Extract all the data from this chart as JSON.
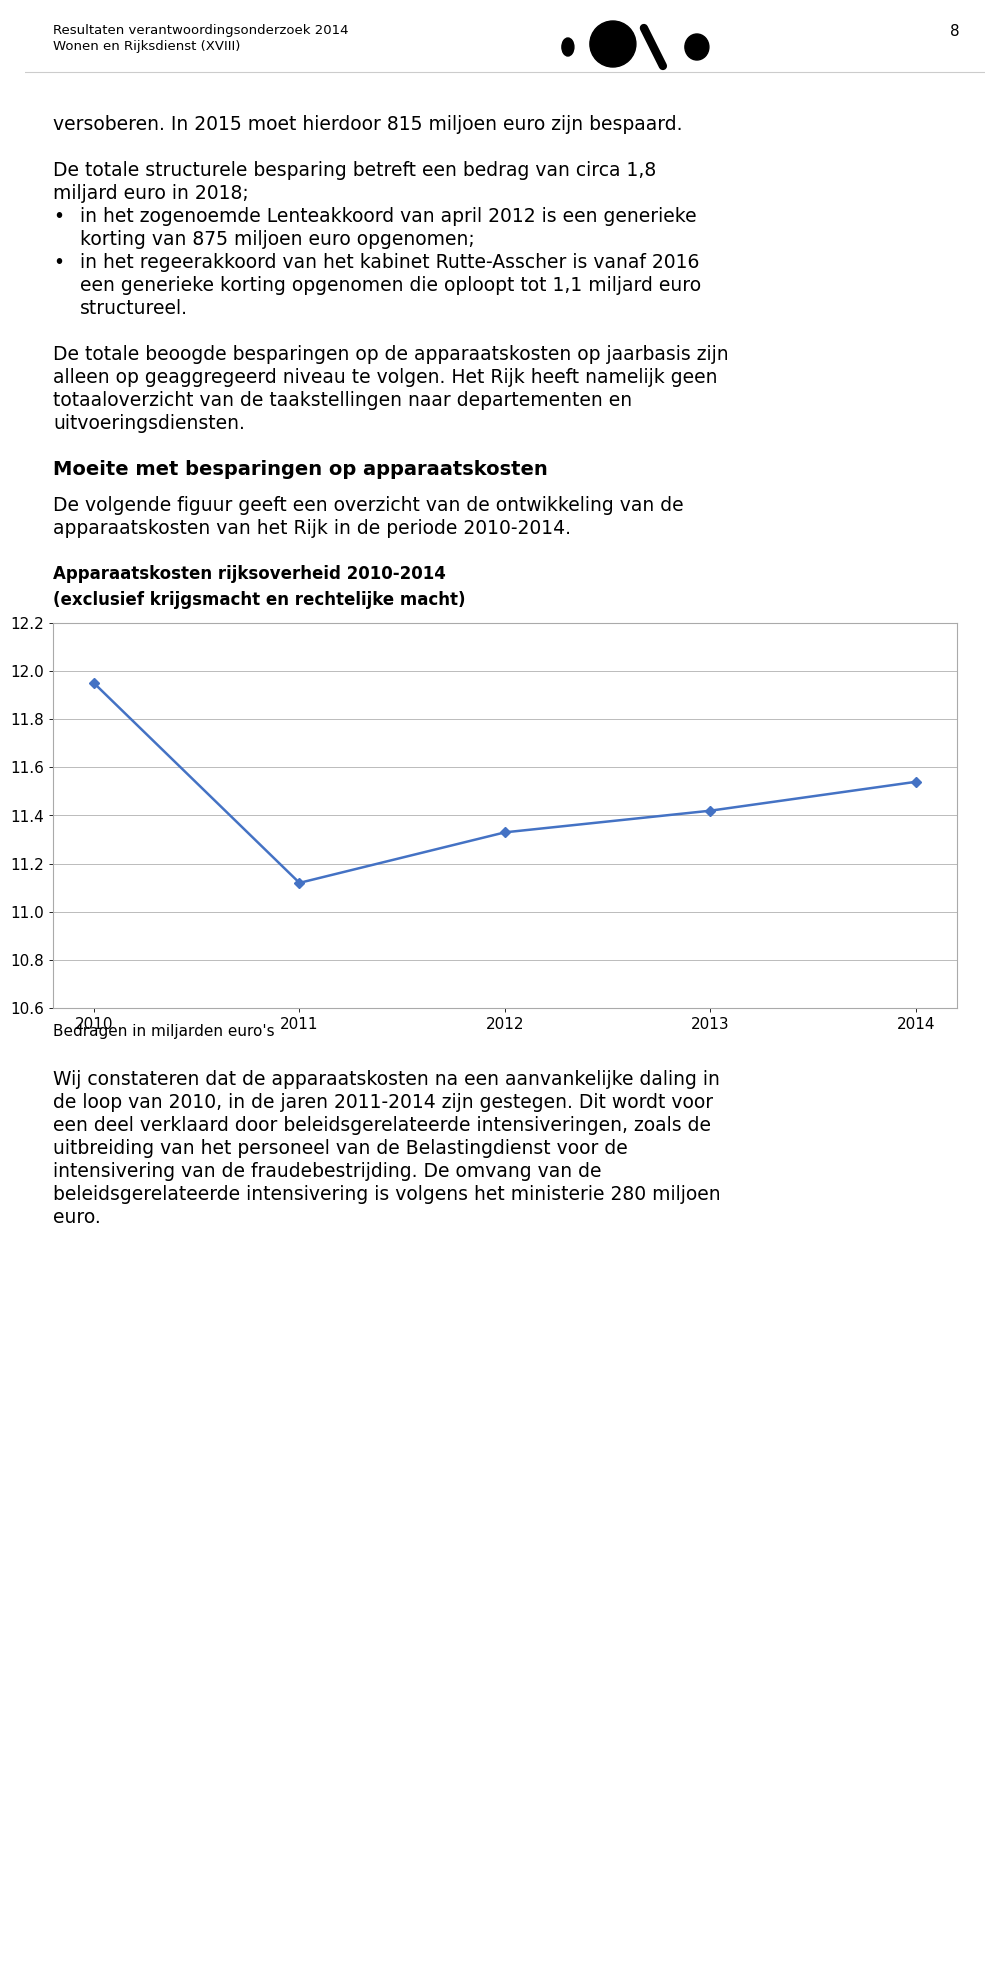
{
  "header_line1": "Resultaten verantwoordingsonderzoek 2014",
  "header_line2": "Wonen en Rijksdienst (XVIII)",
  "page_number": "8",
  "chart_title_line1": "Apparaatskosten rijksoverheid 2010-2014",
  "chart_title_line2": "(exclusief krijgsmacht en rechtelijke macht)",
  "chart_x_values": [
    2010,
    2011,
    2012,
    2013,
    2014
  ],
  "chart_y_values": [
    11.95,
    11.12,
    11.33,
    11.42,
    11.54
  ],
  "chart_ylim": [
    10.6,
    12.2
  ],
  "chart_yticks": [
    10.6,
    10.8,
    11.0,
    11.2,
    11.4,
    11.6,
    11.8,
    12.0,
    12.2
  ],
  "chart_line_color": "#4472C4",
  "chart_marker": "D",
  "chart_marker_size": 5,
  "chart_note": "Bedragen in miljarden euro's",
  "background_color": "#ffffff",
  "text_color": "#000000",
  "chart_grid_color": "#bbbbbb",
  "chart_border_color": "#aaaaaa",
  "body_fs": 13.5,
  "header_fs": 9.5,
  "chart_title_fs": 12,
  "section_header_fs": 14,
  "chart_note_fs": 11,
  "axis_tick_fs": 11
}
